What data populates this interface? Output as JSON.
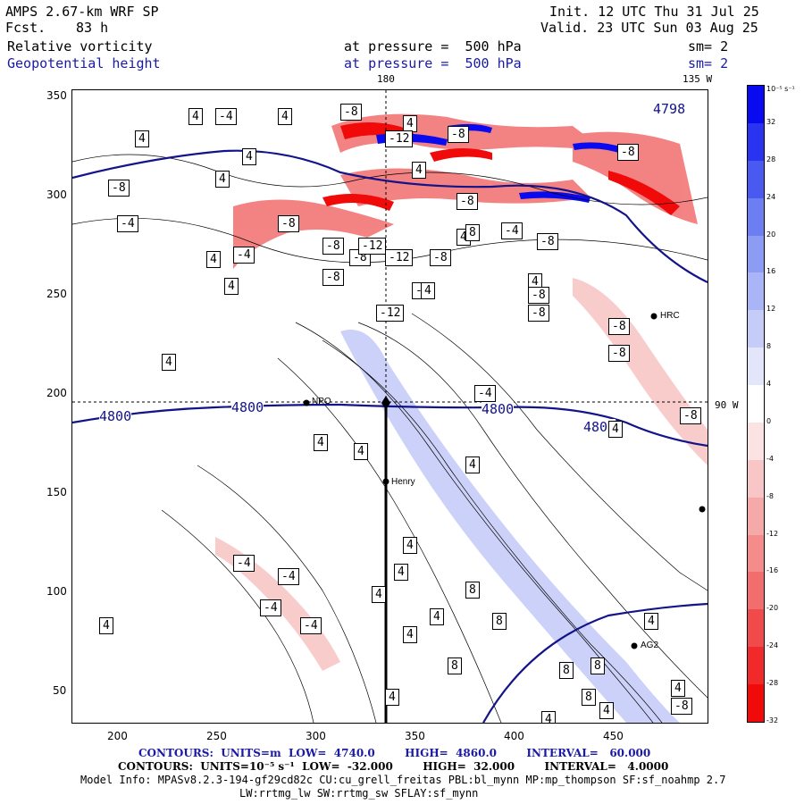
{
  "header": {
    "model": "AMPS 2.67-km WRF SP",
    "fcst_label": "Fcst.",
    "fcst_value": "83 h",
    "field1": "Relative vorticity",
    "field2": "Geopotential height",
    "pressure1": "at pressure =  500 hPa",
    "pressure2": "at pressure =  500 hPa",
    "init": "Init. 12 UTC Thu 31 Jul 25",
    "valid": "Valid. 23 UTC Sun 03 Aug 25",
    "sm1": "sm= 2",
    "sm2": "sm= 2"
  },
  "map_labels": {
    "lon_180": "180",
    "lon_135w": "135 W",
    "lat_90w": "90 W",
    "stations": [
      "NPO",
      "Henry",
      "HRC",
      "AG2"
    ]
  },
  "axes": {
    "x_ticks": [
      "200",
      "250",
      "300",
      "350",
      "400",
      "450"
    ],
    "y_ticks": [
      "350",
      "300",
      "250",
      "200",
      "150",
      "100",
      "50"
    ]
  },
  "colorbar": {
    "unit": "10⁻⁵ s⁻¹",
    "labels": [
      "32",
      "28",
      "24",
      "20",
      "16",
      "12",
      "8",
      "4",
      "0",
      "-4",
      "-8",
      "-12",
      "-16",
      "-20",
      "-24",
      "-28",
      "-32"
    ],
    "colors": [
      "#0a0af0",
      "#2a34f0",
      "#4a5af0",
      "#6d7ef2",
      "#8c9bf4",
      "#a9b5f6",
      "#c6ccf8",
      "#e3e6fb",
      "#ffffff",
      "#fbe3e3",
      "#f8c6c6",
      "#f6a9a9",
      "#f48c8c",
      "#f26d6d",
      "#f04a4a",
      "#f02a2a",
      "#f00a0a"
    ]
  },
  "contour_labels": {
    "height": [
      "4800",
      "4800",
      "4800",
      "4800",
      "4798"
    ],
    "vorticity_boxes": [
      "4",
      "-4",
      "4",
      "4",
      "-8",
      "4",
      "-8",
      "-12",
      "4",
      "-8",
      "4",
      "4",
      "-4",
      "-8",
      "-8",
      "4",
      "-4",
      "-8",
      "-12",
      "-8",
      "-8",
      "4",
      "-4",
      "-8",
      "4",
      "-8",
      "-12",
      "-8",
      "-8",
      "4",
      "-8",
      "4",
      "-8",
      "-8",
      "4",
      "-4",
      "4",
      "4",
      "4",
      "-4",
      "-4",
      "-4",
      "-4",
      "4",
      "4",
      "4",
      "4",
      "8",
      "4",
      "4",
      "8",
      "8",
      "4",
      "8",
      "4",
      "8",
      "8",
      "4",
      "4",
      "-8",
      "4",
      "4",
      "8",
      "-8",
      "-12",
      "-8"
    ]
  },
  "footer": {
    "line1": "CONTOURS:  UNITS=m  LOW=  4740.0        HIGH=  4860.0        INTERVAL=   60.000",
    "line2": "CONTOURS:  UNITS=10⁻⁵ s⁻¹  LOW=  -32.000        HIGH=  32.000        INTERVAL=   4.0000",
    "line3": "Model Info: MPASv8.2.3-194-gf29cd82c CU:cu_grell_freitas PBL:bl_mynn MP:mp_thompson SF:sf_noahmp 2.7",
    "line4": "LW:rrtmg_lw SW:rrtmg_sw SFLAY:sf_mynn"
  }
}
